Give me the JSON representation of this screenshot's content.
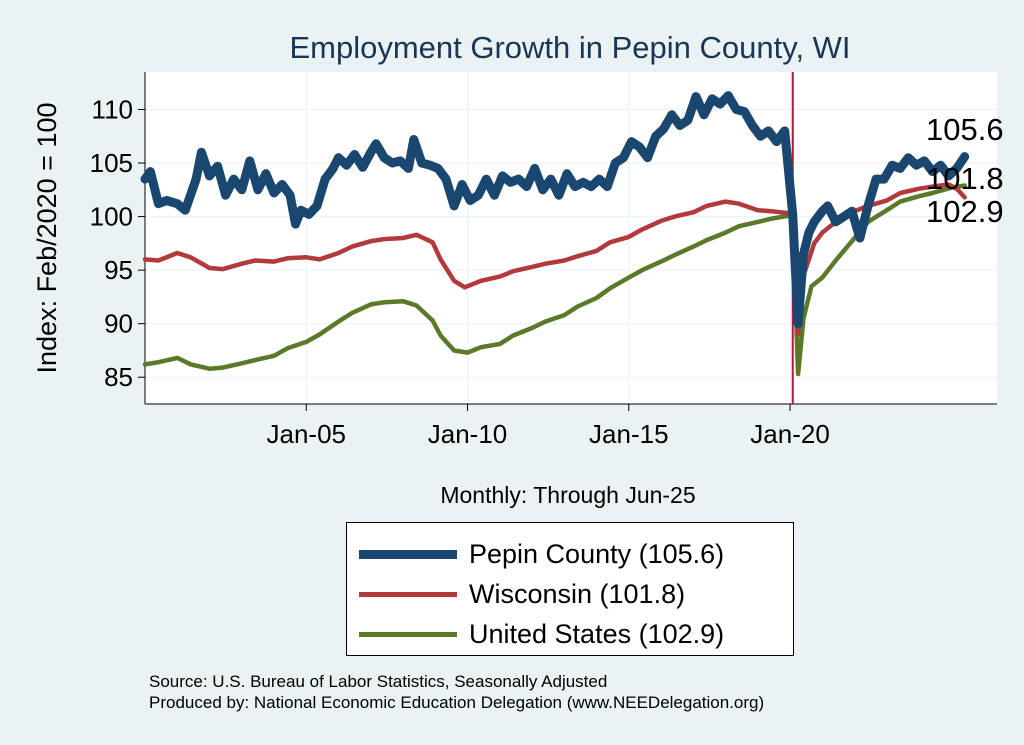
{
  "chart_data": {
    "type": "line",
    "title": "Employment Growth in Pepin  County, WI",
    "xlabel": "Monthly: Through Jun-25",
    "ylabel": "Index: Feb/2020 = 100",
    "ylim": [
      82.5,
      113.5
    ],
    "yticks": [
      85,
      90,
      95,
      100,
      105,
      110
    ],
    "xlim": [
      "2000-01",
      "2026-06"
    ],
    "xticks": [
      {
        "x": "2005-01",
        "label": "Jan-05"
      },
      {
        "x": "2010-01",
        "label": "Jan-10"
      },
      {
        "x": "2015-01",
        "label": "Jan-15"
      },
      {
        "x": "2020-01",
        "label": "Jan-20"
      }
    ],
    "vline": "2020-02",
    "grid": true,
    "series": [
      {
        "name": "Pepin  County (105.6)",
        "end_label": "105.6",
        "color": "#1a476f",
        "points": [
          [
            "2000-01",
            103.5
          ],
          [
            "2000-03",
            104.2
          ],
          [
            "2000-06",
            101.2
          ],
          [
            "2000-09",
            101.5
          ],
          [
            "2001-01",
            101.2
          ],
          [
            "2001-04",
            100.6
          ],
          [
            "2001-08",
            103.5
          ],
          [
            "2001-10",
            106.0
          ],
          [
            "2002-01",
            103.8
          ],
          [
            "2002-04",
            104.7
          ],
          [
            "2002-07",
            102.0
          ],
          [
            "2002-10",
            103.5
          ],
          [
            "2003-01",
            102.5
          ],
          [
            "2003-04",
            105.2
          ],
          [
            "2003-07",
            102.5
          ],
          [
            "2003-10",
            104.0
          ],
          [
            "2004-01",
            102.2
          ],
          [
            "2004-04",
            103.0
          ],
          [
            "2004-07",
            102.0
          ],
          [
            "2004-09",
            99.3
          ],
          [
            "2004-11",
            100.6
          ],
          [
            "2005-02",
            100.2
          ],
          [
            "2005-05",
            101.0
          ],
          [
            "2005-08",
            103.5
          ],
          [
            "2005-11",
            104.5
          ],
          [
            "2006-01",
            105.5
          ],
          [
            "2006-04",
            104.8
          ],
          [
            "2006-07",
            105.8
          ],
          [
            "2006-10",
            104.6
          ],
          [
            "2007-01",
            106.0
          ],
          [
            "2007-03",
            106.8
          ],
          [
            "2007-06",
            105.5
          ],
          [
            "2007-09",
            105.0
          ],
          [
            "2007-12",
            105.2
          ],
          [
            "2008-03",
            104.5
          ],
          [
            "2008-05",
            107.2
          ],
          [
            "2008-08",
            105.0
          ],
          [
            "2008-11",
            104.8
          ],
          [
            "2009-02",
            104.5
          ],
          [
            "2009-05",
            103.5
          ],
          [
            "2009-08",
            101.0
          ],
          [
            "2009-11",
            103.0
          ],
          [
            "2010-02",
            101.5
          ],
          [
            "2010-05",
            102.0
          ],
          [
            "2010-08",
            103.5
          ],
          [
            "2010-11",
            102.0
          ],
          [
            "2011-02",
            103.8
          ],
          [
            "2011-05",
            103.2
          ],
          [
            "2011-08",
            103.5
          ],
          [
            "2011-11",
            102.8
          ],
          [
            "2012-02",
            104.5
          ],
          [
            "2012-05",
            102.5
          ],
          [
            "2012-08",
            103.5
          ],
          [
            "2012-11",
            102.0
          ],
          [
            "2013-02",
            104.0
          ],
          [
            "2013-05",
            102.8
          ],
          [
            "2013-08",
            103.2
          ],
          [
            "2013-11",
            102.8
          ],
          [
            "2014-02",
            103.5
          ],
          [
            "2014-05",
            102.8
          ],
          [
            "2014-08",
            105.0
          ],
          [
            "2014-11",
            105.5
          ],
          [
            "2015-02",
            107.0
          ],
          [
            "2015-05",
            106.5
          ],
          [
            "2015-08",
            105.5
          ],
          [
            "2015-11",
            107.5
          ],
          [
            "2016-02",
            108.2
          ],
          [
            "2016-05",
            109.5
          ],
          [
            "2016-08",
            108.5
          ],
          [
            "2016-11",
            109.0
          ],
          [
            "2017-02",
            111.2
          ],
          [
            "2017-05",
            109.5
          ],
          [
            "2017-08",
            111.0
          ],
          [
            "2017-11",
            110.5
          ],
          [
            "2018-02",
            111.3
          ],
          [
            "2018-05",
            110.0
          ],
          [
            "2018-08",
            109.8
          ],
          [
            "2018-11",
            108.5
          ],
          [
            "2019-02",
            107.5
          ],
          [
            "2019-05",
            108.0
          ],
          [
            "2019-08",
            107.0
          ],
          [
            "2019-11",
            108.0
          ],
          [
            "2020-02",
            100.2
          ],
          [
            "2020-04",
            90.0
          ],
          [
            "2020-06",
            96.5
          ],
          [
            "2020-08",
            98.5
          ],
          [
            "2020-10",
            99.5
          ],
          [
            "2021-01",
            100.5
          ],
          [
            "2021-03",
            101.0
          ],
          [
            "2021-06",
            99.5
          ],
          [
            "2021-09",
            100.0
          ],
          [
            "2021-12",
            100.5
          ],
          [
            "2022-03",
            98.0
          ],
          [
            "2022-06",
            101.0
          ],
          [
            "2022-09",
            103.5
          ],
          [
            "2022-12",
            103.5
          ],
          [
            "2023-03",
            104.8
          ],
          [
            "2023-06",
            104.5
          ],
          [
            "2023-09",
            105.5
          ],
          [
            "2023-12",
            104.8
          ],
          [
            "2024-03",
            105.2
          ],
          [
            "2024-06",
            104.2
          ],
          [
            "2024-09",
            104.8
          ],
          [
            "2024-12",
            103.8
          ],
          [
            "2025-03",
            104.5
          ],
          [
            "2025-06",
            105.6
          ]
        ]
      },
      {
        "name": "Wisconsin (101.8)",
        "end_label": "101.8",
        "color": "#b23a3a",
        "points": [
          [
            "2000-01",
            96.0
          ],
          [
            "2000-06",
            95.9
          ],
          [
            "2001-01",
            96.6
          ],
          [
            "2001-06",
            96.2
          ],
          [
            "2002-01",
            95.2
          ],
          [
            "2002-06",
            95.1
          ],
          [
            "2003-01",
            95.6
          ],
          [
            "2003-06",
            95.9
          ],
          [
            "2004-01",
            95.8
          ],
          [
            "2004-06",
            96.1
          ],
          [
            "2005-01",
            96.2
          ],
          [
            "2005-06",
            96.0
          ],
          [
            "2006-01",
            96.6
          ],
          [
            "2006-06",
            97.2
          ],
          [
            "2007-01",
            97.7
          ],
          [
            "2007-06",
            97.9
          ],
          [
            "2008-01",
            98.0
          ],
          [
            "2008-06",
            98.3
          ],
          [
            "2008-12",
            97.6
          ],
          [
            "2009-03",
            96.0
          ],
          [
            "2009-08",
            94.0
          ],
          [
            "2009-12",
            93.4
          ],
          [
            "2010-06",
            94.0
          ],
          [
            "2011-01",
            94.4
          ],
          [
            "2011-06",
            94.9
          ],
          [
            "2012-01",
            95.3
          ],
          [
            "2012-06",
            95.6
          ],
          [
            "2013-01",
            95.9
          ],
          [
            "2013-06",
            96.3
          ],
          [
            "2014-01",
            96.8
          ],
          [
            "2014-06",
            97.6
          ],
          [
            "2015-01",
            98.1
          ],
          [
            "2015-06",
            98.8
          ],
          [
            "2016-01",
            99.6
          ],
          [
            "2016-06",
            100.0
          ],
          [
            "2017-01",
            100.4
          ],
          [
            "2017-06",
            101.0
          ],
          [
            "2018-01",
            101.4
          ],
          [
            "2018-06",
            101.2
          ],
          [
            "2019-01",
            100.6
          ],
          [
            "2019-06",
            100.5
          ],
          [
            "2020-01",
            100.3
          ],
          [
            "2020-02",
            100.0
          ],
          [
            "2020-04",
            89.0
          ],
          [
            "2020-06",
            94.5
          ],
          [
            "2020-10",
            97.5
          ],
          [
            "2021-01",
            98.5
          ],
          [
            "2021-06",
            99.5
          ],
          [
            "2022-01",
            100.5
          ],
          [
            "2022-06",
            101.0
          ],
          [
            "2023-01",
            101.5
          ],
          [
            "2023-06",
            102.2
          ],
          [
            "2024-01",
            102.6
          ],
          [
            "2024-06",
            102.8
          ],
          [
            "2024-12",
            103.0
          ],
          [
            "2025-03",
            102.6
          ],
          [
            "2025-06",
            101.8
          ]
        ]
      },
      {
        "name": "United States (102.9)",
        "end_label": "102.9",
        "color": "#5a7a29",
        "points": [
          [
            "2000-01",
            86.2
          ],
          [
            "2000-06",
            86.4
          ],
          [
            "2001-01",
            86.8
          ],
          [
            "2001-06",
            86.2
          ],
          [
            "2002-01",
            85.8
          ],
          [
            "2002-06",
            85.9
          ],
          [
            "2003-01",
            86.3
          ],
          [
            "2003-06",
            86.6
          ],
          [
            "2004-01",
            87.0
          ],
          [
            "2004-06",
            87.7
          ],
          [
            "2005-01",
            88.3
          ],
          [
            "2005-06",
            89.0
          ],
          [
            "2006-01",
            90.2
          ],
          [
            "2006-06",
            91.0
          ],
          [
            "2007-01",
            91.8
          ],
          [
            "2007-06",
            92.0
          ],
          [
            "2008-01",
            92.1
          ],
          [
            "2008-06",
            91.7
          ],
          [
            "2008-12",
            90.3
          ],
          [
            "2009-03",
            88.9
          ],
          [
            "2009-08",
            87.5
          ],
          [
            "2010-01",
            87.3
          ],
          [
            "2010-06",
            87.8
          ],
          [
            "2011-01",
            88.1
          ],
          [
            "2011-06",
            88.9
          ],
          [
            "2012-01",
            89.6
          ],
          [
            "2012-06",
            90.2
          ],
          [
            "2013-01",
            90.8
          ],
          [
            "2013-06",
            91.6
          ],
          [
            "2014-01",
            92.4
          ],
          [
            "2014-06",
            93.3
          ],
          [
            "2015-01",
            94.3
          ],
          [
            "2015-06",
            95.0
          ],
          [
            "2016-01",
            95.8
          ],
          [
            "2016-06",
            96.4
          ],
          [
            "2017-01",
            97.2
          ],
          [
            "2017-06",
            97.8
          ],
          [
            "2018-01",
            98.5
          ],
          [
            "2018-06",
            99.1
          ],
          [
            "2019-01",
            99.5
          ],
          [
            "2019-06",
            99.8
          ],
          [
            "2020-01",
            100.1
          ],
          [
            "2020-02",
            100.0
          ],
          [
            "2020-04",
            85.3
          ],
          [
            "2020-06",
            90.5
          ],
          [
            "2020-09",
            93.5
          ],
          [
            "2021-01",
            94.3
          ],
          [
            "2021-06",
            95.9
          ],
          [
            "2022-01",
            98.0
          ],
          [
            "2022-06",
            99.5
          ],
          [
            "2023-01",
            100.6
          ],
          [
            "2023-06",
            101.4
          ],
          [
            "2024-01",
            101.9
          ],
          [
            "2024-06",
            102.2
          ],
          [
            "2025-01",
            102.7
          ],
          [
            "2025-06",
            102.9
          ]
        ]
      }
    ]
  },
  "legend": {
    "items": [
      {
        "label": "Pepin  County (105.6)",
        "color": "#1a476f"
      },
      {
        "label": "Wisconsin (101.8)",
        "color": "#b23a3a"
      },
      {
        "label": "United States (102.9)",
        "color": "#5a7a29"
      }
    ]
  },
  "footer": {
    "source": "Source: U.S. Bureau of Labor Statistics, Seasonally Adjusted",
    "produced_by": "Produced by: National Economic Education Delegation (www.NEEDelegation.org)"
  }
}
